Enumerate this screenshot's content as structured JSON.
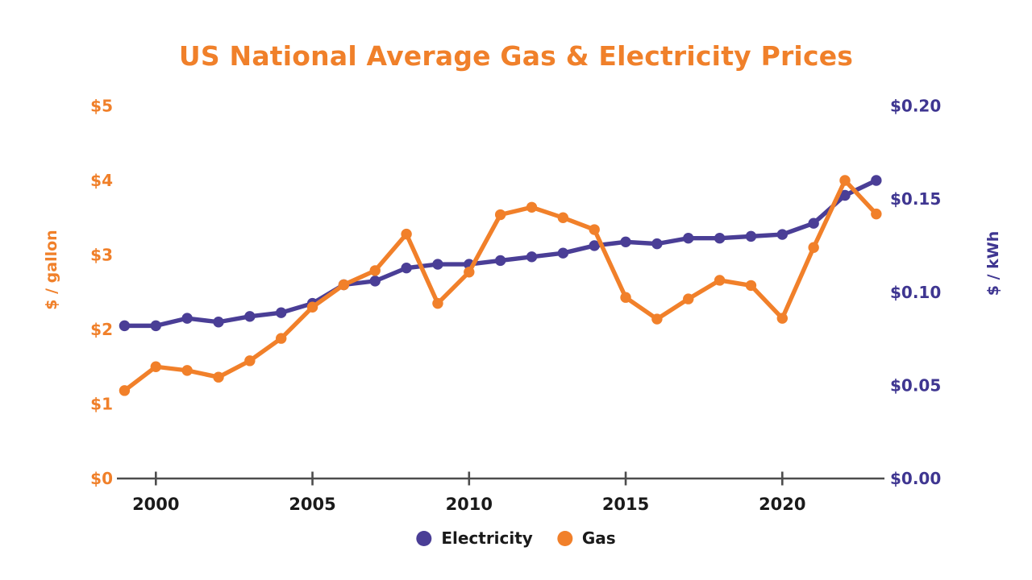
{
  "page": {
    "background": "#ffffff"
  },
  "chart_data": {
    "type": "line",
    "title": "US National Average Gas & Electricity Prices",
    "title_color": "#f0802a",
    "grid": false,
    "legend_position": "bottom-center",
    "x": [
      1999,
      2000,
      2001,
      2002,
      2003,
      2004,
      2005,
      2006,
      2007,
      2008,
      2009,
      2010,
      2011,
      2012,
      2013,
      2014,
      2015,
      2016,
      2017,
      2018,
      2019,
      2020,
      2021,
      2022,
      2023
    ],
    "series": [
      {
        "name": "Electricity",
        "axis": "right",
        "unit": "$ / kWh",
        "color": "#4a3e96",
        "values": [
          0.082,
          0.082,
          0.086,
          0.084,
          0.087,
          0.089,
          0.094,
          0.104,
          0.106,
          0.113,
          0.115,
          0.115,
          0.117,
          0.119,
          0.121,
          0.125,
          0.127,
          0.126,
          0.129,
          0.129,
          0.13,
          0.131,
          0.137,
          0.152,
          0.16
        ]
      },
      {
        "name": "Gas",
        "axis": "left",
        "unit": "$ / gallon",
        "color": "#f1802a",
        "values": [
          1.18,
          1.5,
          1.45,
          1.36,
          1.58,
          1.88,
          2.3,
          2.6,
          2.79,
          3.28,
          2.35,
          2.77,
          3.54,
          3.64,
          3.5,
          3.34,
          2.43,
          2.14,
          2.41,
          2.66,
          2.59,
          2.15,
          3.1,
          4.0,
          3.55
        ]
      }
    ],
    "left_axis": {
      "title": "$ / gallon",
      "color": "#f0802a",
      "min": 0,
      "max": 5,
      "tick_values": [
        0,
        1,
        2,
        3,
        4,
        5
      ],
      "tick_labels": [
        "$0",
        "$1",
        "$2",
        "$3",
        "$4",
        "$5"
      ]
    },
    "right_axis": {
      "title": "$ / kWh",
      "color": "#3f3691",
      "min": 0,
      "max": 0.2,
      "tick_values": [
        0,
        0.05,
        0.1,
        0.15,
        0.2
      ],
      "tick_labels": [
        "$0.00",
        "$0.05",
        "$0.10",
        "$0.15",
        "$0.20"
      ]
    },
    "x_axis": {
      "tick_values": [
        2000,
        2005,
        2010,
        2015,
        2020
      ],
      "tick_labels": [
        "2000",
        "2005",
        "2010",
        "2015",
        "2020"
      ],
      "label_color": "#1a1a1a",
      "line_color": "#4d4d4d"
    },
    "legend": [
      {
        "label": "Electricity",
        "color": "#4a3e96"
      },
      {
        "label": "Gas",
        "color": "#f1802a"
      }
    ]
  }
}
